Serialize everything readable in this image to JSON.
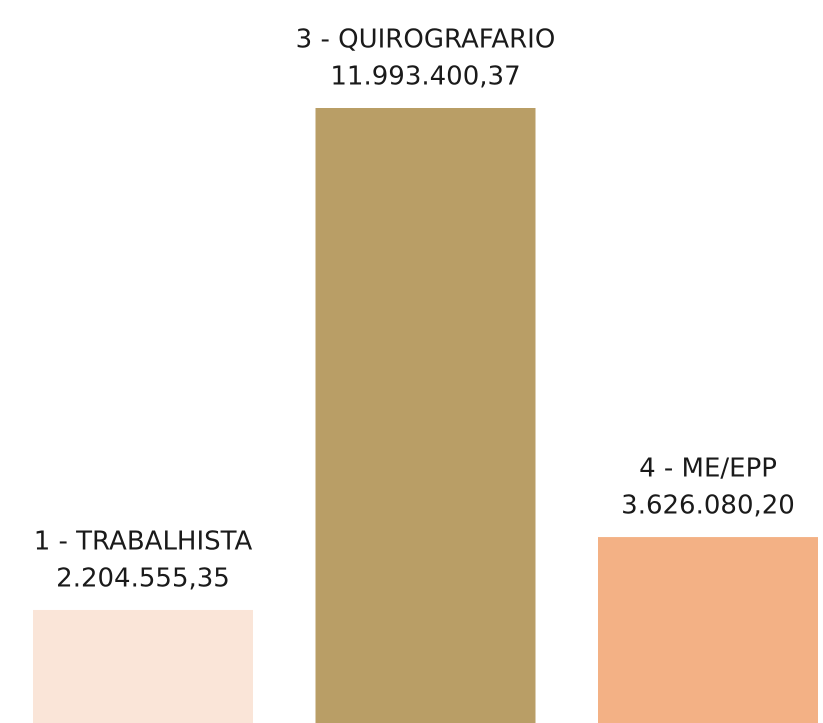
{
  "chart_data": {
    "type": "bar",
    "categories": [
      "1 - TRABALHISTA",
      "3 - QUIROGRAFARIO",
      "4 - ME/EPP"
    ],
    "values": [
      2204555.35,
      11993400.37,
      3626080.2
    ],
    "value_labels": [
      "2.204.555,35",
      "11.993.400,37",
      "3.626.080,20"
    ],
    "colors": [
      "#fae5d8",
      "#b99e66",
      "#f3b185"
    ]
  }
}
